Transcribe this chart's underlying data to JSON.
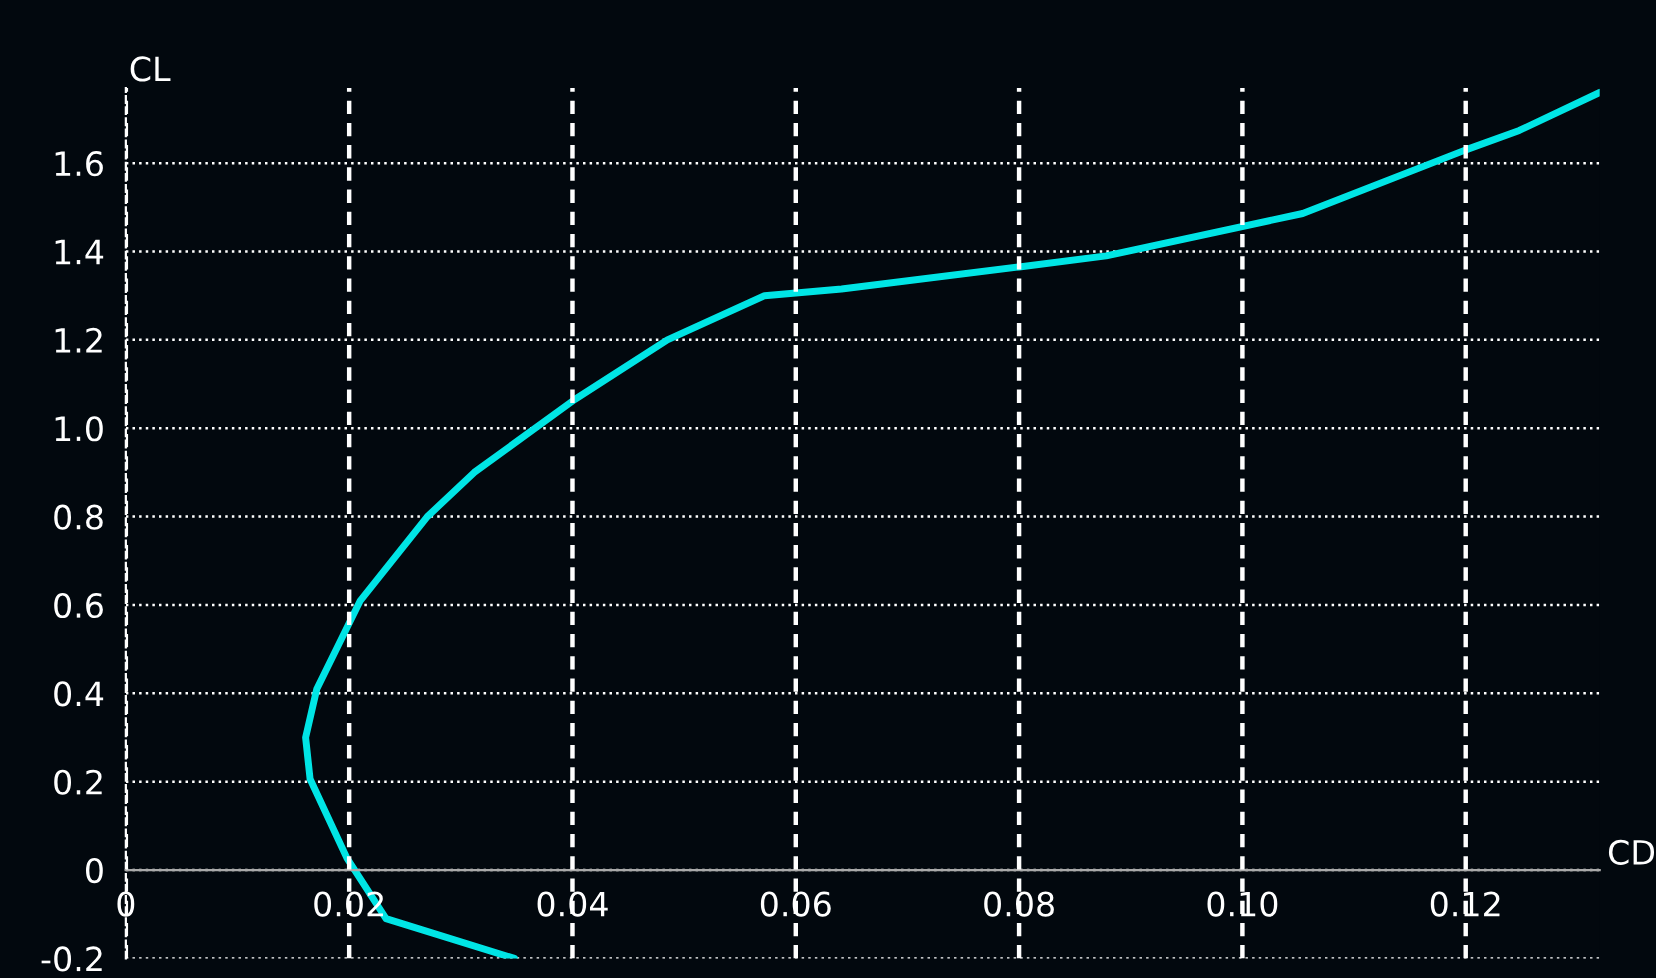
{
  "chart_data": {
    "type": "line",
    "xlabel": "CD",
    "ylabel": "CL",
    "x": [
      0.0348,
      0.0233,
      0.0198,
      0.0165,
      0.0161,
      0.0171,
      0.021,
      0.027,
      0.0312,
      0.0402,
      0.0485,
      0.0572,
      0.0641,
      0.08,
      0.0878,
      0.1054,
      0.12,
      0.1248,
      0.132
    ],
    "series": [
      {
        "color": "#00e5e5",
        "values": [
          -0.2,
          -0.11,
          0.027,
          0.206,
          0.3,
          0.41,
          0.61,
          0.8,
          0.9,
          1.065,
          1.2,
          1.3,
          1.315,
          1.365,
          1.39,
          1.486,
          1.63,
          1.674,
          1.76
        ]
      }
    ],
    "xlim": [
      0,
      0.132
    ],
    "ylim": [
      -0.2,
      1.77
    ],
    "xticks": [
      0,
      0.02,
      0.04,
      0.06,
      0.08,
      {
        "value": 0.1,
        "label": "0.10"
      },
      0.12
    ],
    "yticks": [
      -0.2,
      0,
      0.2,
      0.4,
      0.6,
      0.8,
      {
        "value": 1,
        "label": "1.0"
      },
      1.2,
      1.4,
      1.6
    ],
    "grid": true,
    "legend": false,
    "marker": "none",
    "line_style": "solid"
  }
}
